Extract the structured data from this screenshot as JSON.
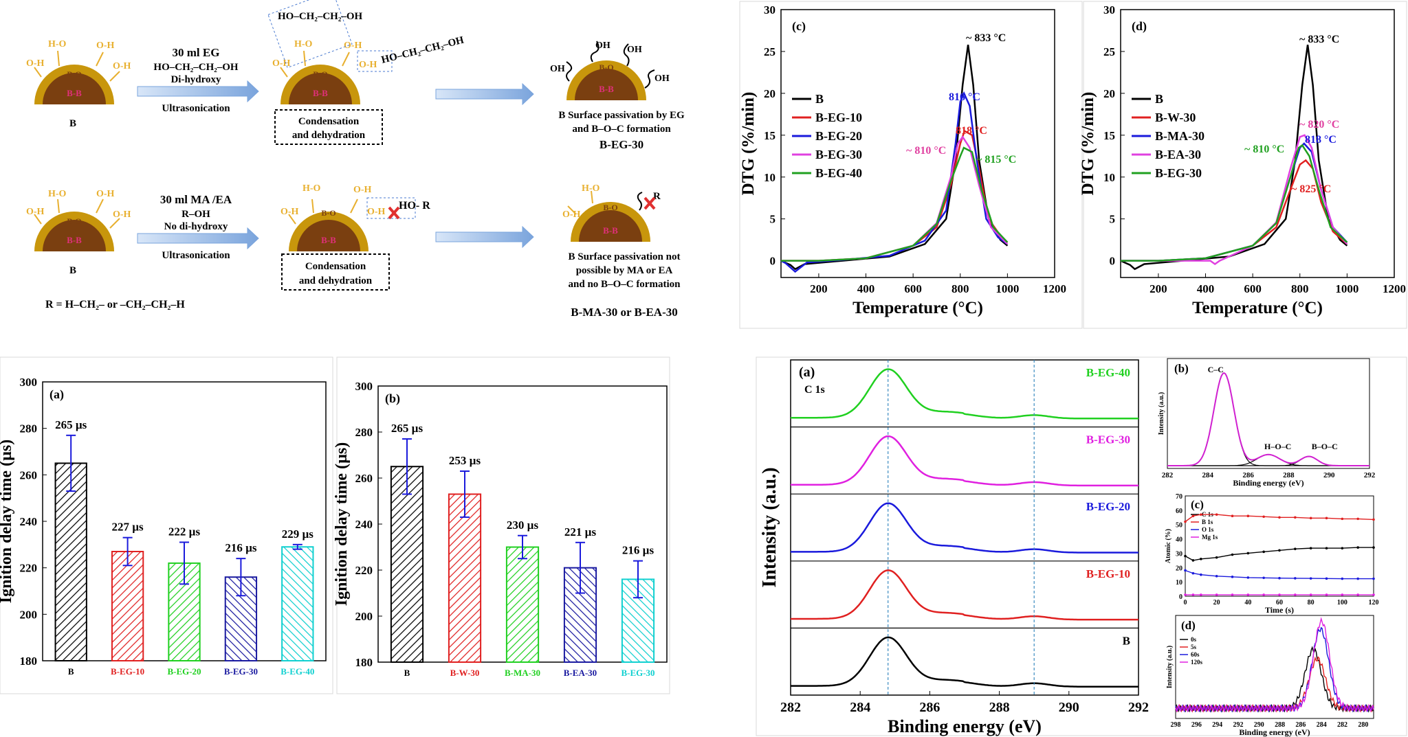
{
  "scheme": {
    "row1": {
      "solvent": "30 ml EG",
      "formula": "HO–CH₂–CH₂–OH",
      "note": "Di-hydroxy",
      "process": "Ultrasonication",
      "boron": "B",
      "step": [
        "Condensation",
        "and dehydration"
      ],
      "molecule_top": "HO–CH₂–CH₂–OH",
      "molecule_side": "HO–CH₂–CH₂–OH",
      "result": [
        "B Surface passivation by EG",
        "and  B–O–C formation"
      ],
      "product": "B-EG-30"
    },
    "row2": {
      "solvent": "30 ml MA /EA",
      "formula": "R–OH",
      "note": "No di-hydroxy",
      "process": "Ultrasonication",
      "boron": "B",
      "step": [
        "Condensation",
        "and dehydration"
      ],
      "reagent": "HO- R",
      "result": [
        "B Surface passivation not",
        "possible by MA  or EA",
        "and no B–O–C formation"
      ],
      "product": "B-MA-30 or B-EA-30"
    },
    "r_def": "R =  H–CH₂– or  –CH₂–CH₂–H",
    "particle": {
      "bo": "B-O",
      "core": "B-B",
      "oh": "O-H",
      "ho": "H-O",
      "oh2": "OH"
    },
    "colors": {
      "shell": "#c8960c",
      "core": "#7a3f10",
      "core_text": "#e0307a",
      "ligand": "#e8b030",
      "arrow": "#8fb3e0",
      "cross": "#e03030"
    }
  },
  "chart_data": [
    {
      "id": "c",
      "panel": "(c)",
      "type": "line",
      "xlabel": "Temperature (°C)",
      "ylabel": "DTG (%/min)",
      "xlim": [
        40,
        1200
      ],
      "ylim": [
        -2,
        30
      ],
      "xticks": [
        200,
        400,
        600,
        800,
        1000,
        1200
      ],
      "yticks": [
        0,
        5,
        10,
        15,
        20,
        25,
        30
      ],
      "legend": "left",
      "series": [
        {
          "name": "B",
          "color": "#000000",
          "points": [
            [
              40,
              0
            ],
            [
              80,
              -0.5
            ],
            [
              100,
              -1
            ],
            [
              140,
              -0.4
            ],
            [
              300,
              0
            ],
            [
              500,
              0.5
            ],
            [
              650,
              2
            ],
            [
              740,
              5
            ],
            [
              780,
              12
            ],
            [
              810,
              21
            ],
            [
              833,
              25.8
            ],
            [
              855,
              21
            ],
            [
              880,
              12
            ],
            [
              920,
              5
            ],
            [
              970,
              2.5
            ],
            [
              1000,
              1.8
            ]
          ]
        },
        {
          "name": "B-EG-10",
          "color": "#e02020",
          "points": [
            [
              40,
              0
            ],
            [
              200,
              0
            ],
            [
              400,
              0.3
            ],
            [
              600,
              1.8
            ],
            [
              700,
              4
            ],
            [
              760,
              9
            ],
            [
              800,
              14
            ],
            [
              818,
              15.5
            ],
            [
              850,
              15
            ],
            [
              880,
              11
            ],
            [
              920,
              5
            ],
            [
              970,
              3
            ],
            [
              1000,
              2.2
            ]
          ]
        },
        {
          "name": "B-EG-20",
          "color": "#1a1adc",
          "points": [
            [
              40,
              0
            ],
            [
              60,
              -0.3
            ],
            [
              100,
              -1.3
            ],
            [
              150,
              -0.2
            ],
            [
              300,
              0.1
            ],
            [
              500,
              0.6
            ],
            [
              650,
              2.4
            ],
            [
              740,
              6
            ],
            [
              780,
              14
            ],
            [
              800,
              19
            ],
            [
              816,
              20
            ],
            [
              840,
              18.5
            ],
            [
              870,
              12
            ],
            [
              910,
              5
            ],
            [
              960,
              2.8
            ],
            [
              1000,
              2
            ]
          ]
        },
        {
          "name": "B-EG-30",
          "color": "#e040e0",
          "points": [
            [
              40,
              0
            ],
            [
              200,
              0
            ],
            [
              400,
              0.3
            ],
            [
              600,
              1.8
            ],
            [
              700,
              4.5
            ],
            [
              760,
              10
            ],
            [
              790,
              14
            ],
            [
              810,
              14.8
            ],
            [
              840,
              13.5
            ],
            [
              880,
              9
            ],
            [
              930,
              4
            ],
            [
              1000,
              2
            ]
          ]
        },
        {
          "name": "B-EG-40",
          "color": "#20a020",
          "points": [
            [
              40,
              0
            ],
            [
              200,
              0
            ],
            [
              400,
              0.3
            ],
            [
              600,
              1.8
            ],
            [
              700,
              4.4
            ],
            [
              760,
              9.5
            ],
            [
              800,
              12.5
            ],
            [
              815,
              13.5
            ],
            [
              850,
              13
            ],
            [
              890,
              8.5
            ],
            [
              940,
              4
            ],
            [
              1000,
              2.2
            ]
          ]
        }
      ],
      "annotations": [
        {
          "text": "~ 833 °C",
          "color": "#000000"
        },
        {
          "text": "816 °C",
          "color": "#1a1adc"
        },
        {
          "text": "818 °C",
          "color": "#e02020"
        },
        {
          "text": "~ 810 °C",
          "color": "#e040a0"
        },
        {
          "text": "~ 815 °C",
          "color": "#20a020"
        }
      ]
    },
    {
      "id": "d",
      "panel": "(d)",
      "type": "line",
      "xlabel": "Temperature (°C)",
      "ylabel": "DTG (%/min)",
      "xlim": [
        40,
        1200
      ],
      "ylim": [
        -2,
        30
      ],
      "xticks": [
        200,
        400,
        600,
        800,
        1000,
        1200
      ],
      "yticks": [
        0,
        5,
        10,
        15,
        20,
        25,
        30
      ],
      "legend": "left",
      "series": [
        {
          "name": "B",
          "color": "#000000",
          "points": [
            [
              40,
              0
            ],
            [
              80,
              -0.5
            ],
            [
              100,
              -1
            ],
            [
              140,
              -0.4
            ],
            [
              300,
              0
            ],
            [
              500,
              0.5
            ],
            [
              650,
              2
            ],
            [
              740,
              5
            ],
            [
              780,
              12
            ],
            [
              810,
              21
            ],
            [
              833,
              25.8
            ],
            [
              855,
              21
            ],
            [
              880,
              12
            ],
            [
              920,
              5
            ],
            [
              970,
              2.5
            ],
            [
              1000,
              1.8
            ]
          ]
        },
        {
          "name": "B-W-30",
          "color": "#e02020",
          "points": [
            [
              40,
              0
            ],
            [
              200,
              0
            ],
            [
              400,
              0.3
            ],
            [
              600,
              1.8
            ],
            [
              700,
              4
            ],
            [
              760,
              8.5
            ],
            [
              800,
              11.5
            ],
            [
              825,
              12
            ],
            [
              855,
              11
            ],
            [
              890,
              7
            ],
            [
              940,
              3.5
            ],
            [
              1000,
              2
            ]
          ]
        },
        {
          "name": "B-MA-30",
          "color": "#1a1adc",
          "points": [
            [
              40,
              0
            ],
            [
              200,
              0
            ],
            [
              400,
              0.3
            ],
            [
              600,
              1.8
            ],
            [
              700,
              4.5
            ],
            [
              760,
              10
            ],
            [
              800,
              13.5
            ],
            [
              818,
              14
            ],
            [
              850,
              13
            ],
            [
              890,
              8.5
            ],
            [
              940,
              4
            ],
            [
              1000,
              2.2
            ]
          ]
        },
        {
          "name": "B-EA-30",
          "color": "#e040e0",
          "points": [
            [
              40,
              0
            ],
            [
              200,
              0
            ],
            [
              420,
              0
            ],
            [
              440,
              -0.4
            ],
            [
              460,
              0
            ],
            [
              600,
              1.8
            ],
            [
              700,
              4.6
            ],
            [
              760,
              11
            ],
            [
              800,
              14.8
            ],
            [
              820,
              15
            ],
            [
              850,
              13.5
            ],
            [
              890,
              8.5
            ],
            [
              940,
              4
            ],
            [
              1000,
              2
            ]
          ]
        },
        {
          "name": "B-EG-30",
          "color": "#20a020",
          "points": [
            [
              40,
              0
            ],
            [
              200,
              0
            ],
            [
              400,
              0.3
            ],
            [
              600,
              1.8
            ],
            [
              700,
              4.5
            ],
            [
              760,
              10
            ],
            [
              795,
              13.5
            ],
            [
              810,
              13.8
            ],
            [
              840,
              12.5
            ],
            [
              880,
              8.5
            ],
            [
              930,
              4
            ],
            [
              1000,
              2.2
            ]
          ]
        }
      ],
      "annotations": [
        {
          "text": "~ 833 °C",
          "color": "#000000"
        },
        {
          "text": "~ 820 °C",
          "color": "#e040a0"
        },
        {
          "text": "818 °C",
          "color": "#1a1adc"
        },
        {
          "text": "~ 810 °C",
          "color": "#20a020"
        },
        {
          "text": "~ 825 °C",
          "color": "#e02020"
        }
      ]
    },
    {
      "id": "a_bar",
      "panel": "(a)",
      "type": "bar",
      "ylabel": "Ignition delay time (µs)",
      "ylim": [
        180,
        300
      ],
      "yticks": [
        180,
        200,
        220,
        240,
        260,
        280,
        300
      ],
      "categories": [
        "B",
        "B-EG-10",
        "B-EG-20",
        "B-EG-30",
        "B-EG-40"
      ],
      "values": [
        265,
        227,
        222,
        216,
        229
      ],
      "errors": [
        12,
        6,
        9,
        8,
        1
      ],
      "labels": [
        "265 µs",
        "227 µs",
        "222 µs",
        "216 µs",
        "229 µs"
      ],
      "colors": [
        "#000000",
        "#e02020",
        "#20d020",
        "#1a1aa0",
        "#10d0d0"
      ]
    },
    {
      "id": "b_bar",
      "panel": "(b)",
      "type": "bar",
      "ylabel": "Ignition delay time (µs)",
      "ylim": [
        180,
        300
      ],
      "yticks": [
        180,
        200,
        220,
        240,
        260,
        280,
        300
      ],
      "categories": [
        "B",
        "B-W-30",
        "B-MA-30",
        "B-EA-30",
        "B-EG-30"
      ],
      "values": [
        265,
        253,
        230,
        221,
        216
      ],
      "errors": [
        12,
        10,
        5,
        11,
        8
      ],
      "labels": [
        "265 µs",
        "253 µs",
        "230 µs",
        "221 µs",
        "216 µs"
      ],
      "colors": [
        "#000000",
        "#e02020",
        "#20d020",
        "#1a1aa0",
        "#10d0d0"
      ]
    },
    {
      "id": "xps_a",
      "panel": "(a)",
      "type": "line",
      "xlabel": "Binding energy (eV)",
      "ylabel": "Intensity (a.u.)",
      "xlim": [
        282,
        292
      ],
      "xticks": [
        282,
        284,
        286,
        288,
        290,
        292
      ],
      "note": "C 1s",
      "dashed_lines": [
        284.8,
        289
      ],
      "stacked_order": [
        "B-EG-40",
        "B-EG-30",
        "B-EG-20",
        "B-EG-10",
        "B"
      ],
      "series": [
        {
          "name": "B-EG-40",
          "color": "#20d020"
        },
        {
          "name": "B-EG-30",
          "color": "#e020e0"
        },
        {
          "name": "B-EG-20",
          "color": "#1a1adc"
        },
        {
          "name": "B-EG-10",
          "color": "#e02020"
        },
        {
          "name": "B",
          "color": "#000000"
        }
      ]
    },
    {
      "id": "xps_b",
      "panel": "(b)",
      "type": "line",
      "xlabel": "Binding energy (eV)",
      "ylabel": "Intensity (a.u.)",
      "xlim": [
        282,
        292
      ],
      "xticks": [
        282,
        284,
        286,
        288,
        290,
        292
      ],
      "peaks": [
        {
          "label": "C–C",
          "center": 284.8
        },
        {
          "label": "H–O–C",
          "center": 287.0
        },
        {
          "label": "B–O–C",
          "center": 289.0
        }
      ]
    },
    {
      "id": "xps_c",
      "panel": "(c)",
      "type": "line",
      "xlabel": "Time (s)",
      "ylabel": "Atomic (%)",
      "xlim": [
        0,
        120
      ],
      "ylim": [
        0,
        70
      ],
      "xticks": [
        0,
        20,
        40,
        60,
        80,
        100,
        120
      ],
      "yticks": [
        0,
        10,
        20,
        30,
        40,
        50,
        60,
        70
      ],
      "series": [
        {
          "name": "C 1s",
          "color": "#000000",
          "x": [
            0,
            5,
            10,
            20,
            30,
            40,
            50,
            60,
            70,
            80,
            90,
            100,
            110,
            120
          ],
          "values": [
            28,
            25,
            26,
            27,
            29,
            30,
            31,
            32,
            33,
            33.5,
            33.5,
            33.5,
            34,
            34
          ]
        },
        {
          "name": "B 1s",
          "color": "#e02020",
          "x": [
            0,
            5,
            10,
            20,
            30,
            40,
            50,
            60,
            70,
            80,
            90,
            100,
            110,
            120
          ],
          "values": [
            52,
            56,
            57,
            57,
            56,
            56,
            55.5,
            55,
            55,
            54.5,
            54.5,
            54,
            54,
            53.5
          ]
        },
        {
          "name": "O 1s",
          "color": "#1a1adc",
          "x": [
            0,
            5,
            10,
            20,
            30,
            40,
            50,
            60,
            70,
            80,
            90,
            100,
            110,
            120
          ],
          "values": [
            18,
            16,
            15,
            14,
            13.5,
            13,
            12.8,
            12.6,
            12.5,
            12.4,
            12.3,
            12.2,
            12.2,
            12.2
          ]
        },
        {
          "name": "Mg 1s",
          "color": "#e020e0",
          "x": [
            0,
            5,
            10,
            20,
            30,
            40,
            50,
            60,
            70,
            80,
            90,
            100,
            110,
            120
          ],
          "values": [
            1,
            1,
            1,
            1,
            1,
            1,
            1,
            1,
            1,
            1,
            1,
            1,
            1,
            1
          ]
        }
      ]
    },
    {
      "id": "xps_d",
      "panel": "(d)",
      "type": "line",
      "xlabel": "Binding energy (eV)",
      "ylabel": "Intensity (a.u.)",
      "xlim": [
        298,
        279
      ],
      "xticks": [
        298,
        296,
        294,
        292,
        290,
        288,
        286,
        284,
        282,
        280
      ],
      "series": [
        {
          "name": "0s",
          "color": "#000000",
          "center": 284.8,
          "height": 0.63
        },
        {
          "name": "5s",
          "color": "#e02020",
          "center": 284.4,
          "height": 0.53
        },
        {
          "name": "60s",
          "color": "#1a1adc",
          "center": 284.1,
          "height": 0.85
        },
        {
          "name": "120s",
          "color": "#e020e0",
          "center": 284.0,
          "height": 0.93
        }
      ]
    }
  ]
}
